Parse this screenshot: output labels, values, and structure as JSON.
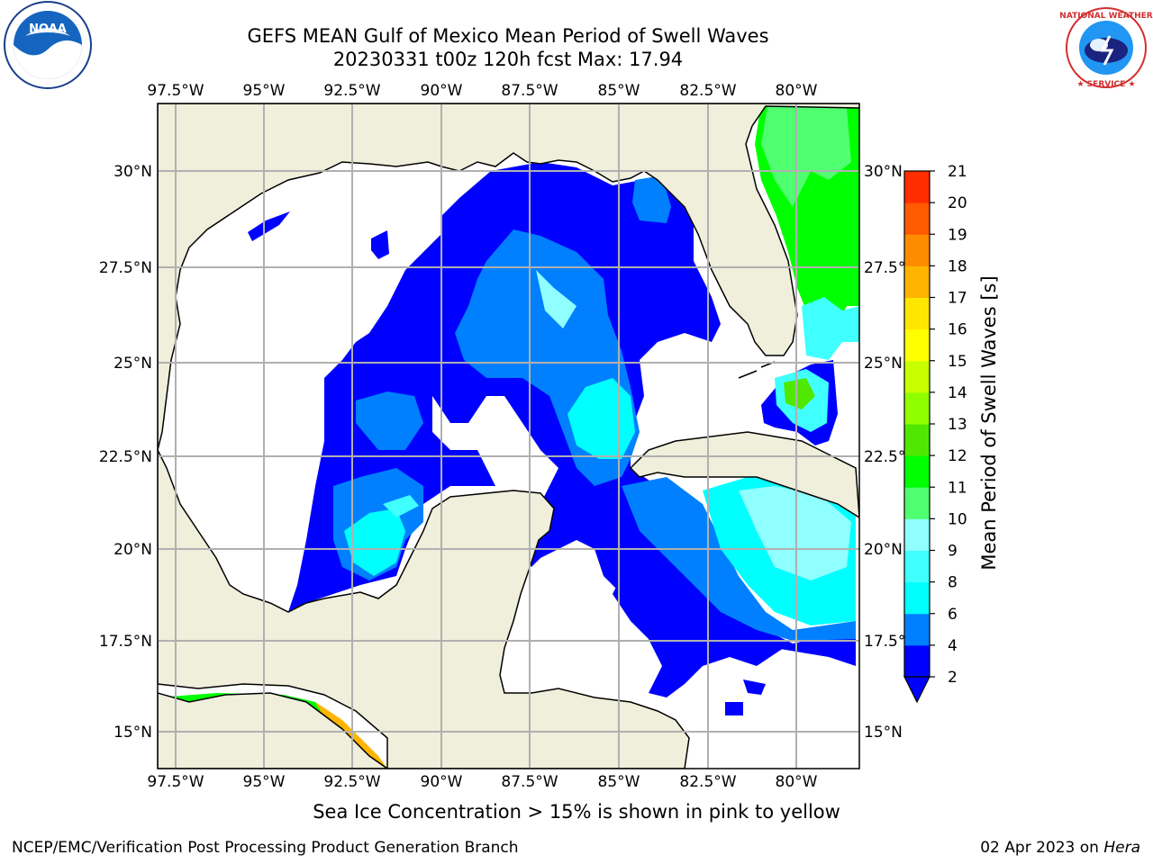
{
  "title_line1": "GEFS MEAN Gulf of Mexico Mean Period of Swell Waves",
  "title_line2": "20230331 t00z 120h fcst   Max: 17.94",
  "logos": {
    "left": "noaa-logo",
    "right": "nws-logo"
  },
  "map": {
    "lon_ticks": [
      "97.5°W",
      "95°W",
      "92.5°W",
      "90°W",
      "87.5°W",
      "85°W",
      "82.5°W",
      "80°W"
    ],
    "lat_ticks": [
      "30°N",
      "27.5°N",
      "25°N",
      "22.5°N",
      "20°N",
      "17.5°N",
      "15°N"
    ],
    "land_color": "#efefdc",
    "ocean_nodata_color": "#ffffff",
    "grid_color": "#b0b0b0"
  },
  "colorbar": {
    "label": "Mean Period of Swell Waves [s]",
    "ticks": [
      "2",
      "4",
      "6",
      "8",
      "9",
      "10",
      "11",
      "12",
      "13",
      "14",
      "15",
      "16",
      "17",
      "18",
      "19",
      "20",
      "21"
    ],
    "colors": [
      "#0000ff",
      "#0080ff",
      "#00ffff",
      "#40ffff",
      "#90ffff",
      "#50ff70",
      "#00ff00",
      "#50e800",
      "#90ff00",
      "#c8ff00",
      "#ffff00",
      "#ffe600",
      "#ffb400",
      "#ff8c00",
      "#ff5a00",
      "#ff2d00",
      "#ff0000"
    ],
    "extend_color": "#0000ff"
  },
  "note": "Sea Ice Concentration > 15% is shown in pink to yellow",
  "footer_left": "NCEP/EMC/Verification Post Processing Product Generation Branch",
  "footer_right_date": "02 Apr 2023 on ",
  "footer_right_host": "Hera"
}
